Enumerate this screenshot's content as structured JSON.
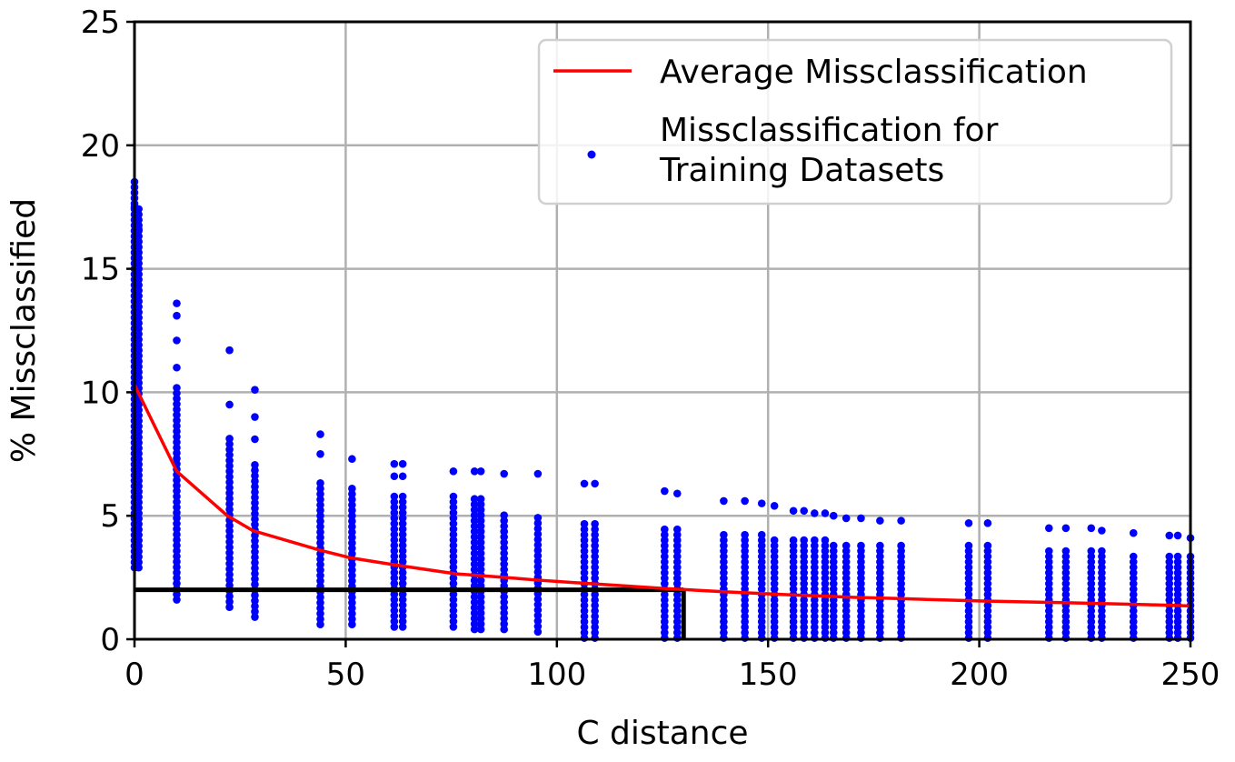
{
  "chart_data": {
    "type": "scatter",
    "title": "",
    "xlabel": "C distance",
    "ylabel": "% Missclassified",
    "xlim": [
      0,
      250
    ],
    "ylim": [
      0,
      25
    ],
    "xticks": [
      0,
      50,
      100,
      150,
      200,
      250
    ],
    "yticks": [
      0,
      5,
      10,
      15,
      20,
      25
    ],
    "grid": true,
    "legend_position": "top-right",
    "colors": {
      "average": "#ff0000",
      "points": "#0000ff",
      "threshold": "#000000"
    },
    "series": [
      {
        "name": "Average Missclassification",
        "kind": "line",
        "x": [
          0,
          10,
          22,
          28,
          44,
          51,
          62,
          76,
          88,
          95,
          108,
          126,
          140,
          155,
          170,
          180,
          200,
          220,
          240,
          250
        ],
        "y": [
          10.3,
          6.8,
          5.0,
          4.4,
          3.6,
          3.3,
          3.0,
          2.65,
          2.5,
          2.4,
          2.25,
          2.05,
          1.92,
          1.8,
          1.7,
          1.65,
          1.55,
          1.48,
          1.4,
          1.35
        ]
      },
      {
        "name": "Missclassification for\nTraining Datasets",
        "kind": "scatter",
        "columns": [
          {
            "x": 0,
            "min": 2.9,
            "max": 18.6,
            "extra": [
              17.5
            ]
          },
          {
            "x": 1,
            "min": 2.9,
            "max": 17.5,
            "extra": [
              16.6
            ]
          },
          {
            "x": 10,
            "min": 1.6,
            "max": 10.3,
            "extra": [
              13.6,
              13.1,
              12.1,
              11.0
            ]
          },
          {
            "x": 22.5,
            "min": 1.3,
            "max": 8.2,
            "extra": [
              11.7,
              9.5
            ]
          },
          {
            "x": 28.5,
            "min": 0.9,
            "max": 7.2,
            "extra": [
              10.1,
              9.0,
              8.1
            ]
          },
          {
            "x": 44,
            "min": 0.6,
            "max": 6.5,
            "extra": [
              8.3,
              7.5
            ]
          },
          {
            "x": 51.5,
            "min": 0.6,
            "max": 6.1,
            "extra": [
              7.3
            ]
          },
          {
            "x": 61.5,
            "min": 0.5,
            "max": 5.8,
            "extra": [
              7.1,
              6.6
            ]
          },
          {
            "x": 63.5,
            "min": 0.5,
            "max": 5.8,
            "extra": [
              7.1,
              6.6
            ]
          },
          {
            "x": 75.5,
            "min": 0.5,
            "max": 5.8,
            "extra": [
              6.8
            ]
          },
          {
            "x": 80.5,
            "min": 0.4,
            "max": 5.8,
            "extra": [
              6.8
            ]
          },
          {
            "x": 82,
            "min": 0.4,
            "max": 5.8,
            "extra": [
              6.8
            ]
          },
          {
            "x": 87.5,
            "min": 0.4,
            "max": 5.1,
            "extra": [
              6.7
            ]
          },
          {
            "x": 95.5,
            "min": 0.3,
            "max": 5.1,
            "extra": [
              6.7
            ]
          },
          {
            "x": 106.5,
            "min": 0.05,
            "max": 4.8,
            "extra": [
              6.3
            ]
          },
          {
            "x": 109,
            "min": 0.05,
            "max": 4.8,
            "extra": [
              6.3
            ]
          },
          {
            "x": 125.5,
            "min": 0.05,
            "max": 4.5,
            "extra": [
              6.0
            ]
          },
          {
            "x": 128.5,
            "min": 0.05,
            "max": 4.5,
            "extra": [
              5.9
            ]
          },
          {
            "x": 139.5,
            "min": 0.05,
            "max": 4.3,
            "extra": [
              5.6
            ]
          },
          {
            "x": 144.5,
            "min": 0.05,
            "max": 4.3,
            "extra": [
              5.6
            ]
          },
          {
            "x": 148.5,
            "min": 0.05,
            "max": 4.3,
            "extra": [
              5.5
            ]
          },
          {
            "x": 151.5,
            "min": 0.05,
            "max": 4.1,
            "extra": [
              5.4
            ]
          },
          {
            "x": 156,
            "min": 0.05,
            "max": 4.1,
            "extra": [
              5.2
            ]
          },
          {
            "x": 158.5,
            "min": 0.05,
            "max": 4.1,
            "extra": [
              5.2
            ]
          },
          {
            "x": 161,
            "min": 0.05,
            "max": 4.1,
            "extra": [
              5.1
            ]
          },
          {
            "x": 163.5,
            "min": 0.05,
            "max": 4.1,
            "extra": [
              5.1
            ]
          },
          {
            "x": 165.5,
            "min": 0.05,
            "max": 4.0,
            "extra": [
              5.0
            ]
          },
          {
            "x": 168.5,
            "min": 0.05,
            "max": 4.0,
            "extra": [
              4.9
            ]
          },
          {
            "x": 172,
            "min": 0.05,
            "max": 4.0,
            "extra": [
              4.9
            ]
          },
          {
            "x": 176.5,
            "min": 0.05,
            "max": 3.9,
            "extra": [
              4.8
            ]
          },
          {
            "x": 181.5,
            "min": 0.05,
            "max": 3.9,
            "extra": [
              4.8
            ]
          },
          {
            "x": 197.5,
            "min": 0.05,
            "max": 3.8,
            "extra": [
              4.7
            ]
          },
          {
            "x": 202,
            "min": 0.05,
            "max": 3.8,
            "extra": [
              4.7
            ]
          },
          {
            "x": 216.5,
            "min": 0.05,
            "max": 3.7,
            "extra": [
              4.5
            ]
          },
          {
            "x": 220.5,
            "min": 0.05,
            "max": 3.7,
            "extra": [
              4.5
            ]
          },
          {
            "x": 226.5,
            "min": 0.05,
            "max": 3.7,
            "extra": [
              4.5
            ]
          },
          {
            "x": 229,
            "min": 0.05,
            "max": 3.6,
            "extra": [
              4.4
            ]
          },
          {
            "x": 236.5,
            "min": 0.05,
            "max": 3.5,
            "extra": [
              4.3
            ]
          },
          {
            "x": 245,
            "min": 0.05,
            "max": 3.5,
            "extra": [
              4.2
            ]
          },
          {
            "x": 247,
            "min": 0.05,
            "max": 3.5,
            "extra": [
              4.2
            ]
          },
          {
            "x": 250,
            "min": 0.05,
            "max": 3.4,
            "extra": [
              4.1
            ]
          }
        ]
      }
    ],
    "threshold": {
      "y": 2.0,
      "x_end": 130
    }
  }
}
